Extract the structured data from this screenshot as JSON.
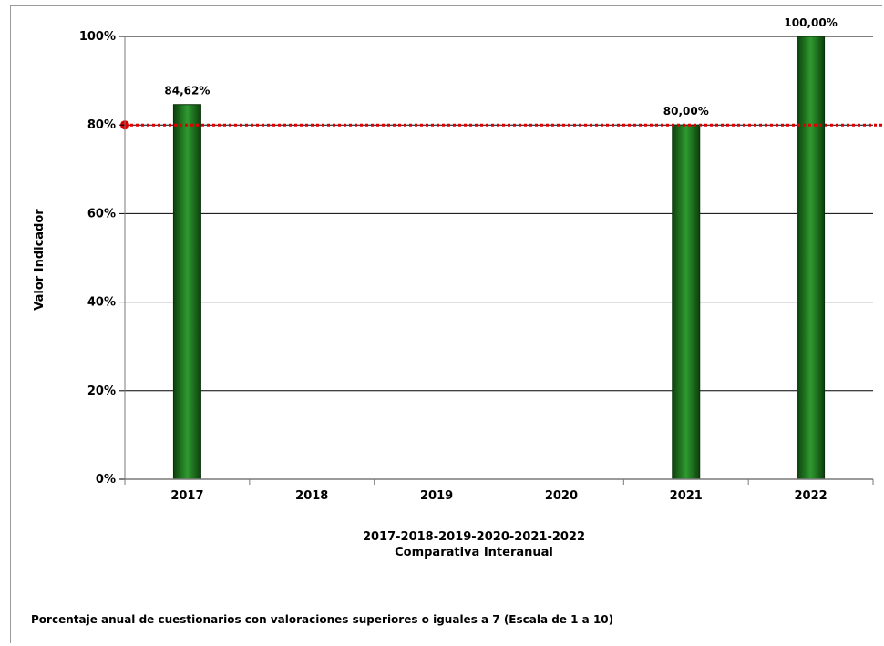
{
  "chart_data": {
    "type": "bar",
    "categories": [
      "2017",
      "2018",
      "2019",
      "2020",
      "2021",
      "2022"
    ],
    "values": [
      84.62,
      null,
      null,
      null,
      80.0,
      100.0
    ],
    "data_labels": [
      "84,62%",
      "",
      "",
      "",
      "80,00%",
      "100,00%"
    ],
    "ylim": [
      0,
      100
    ],
    "yticks": [
      0,
      20,
      40,
      60,
      80,
      100
    ],
    "ytick_labels": [
      "0%",
      "20%",
      "40%",
      "60%",
      "80%",
      "100%"
    ],
    "ylabel": "Valor Indicador",
    "xlabel_line1": "2017-2018-2019-2020-2021-2022",
    "xlabel_line2": "Comparativa Interanual",
    "target_line": {
      "value": 80,
      "style": "dotted",
      "color": "#e00000"
    },
    "grid": true,
    "bar_color": "#1f7a1f",
    "footnote": "Porcentaje anual de cuestionarios con valoraciones superiores o iguales a 7 (Escala de 1 a 10)"
  }
}
